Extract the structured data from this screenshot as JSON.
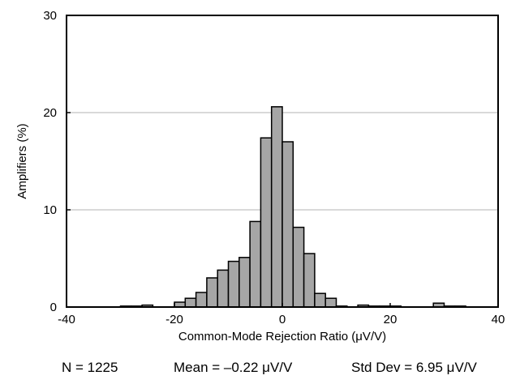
{
  "chart_data": {
    "type": "bar",
    "title": "",
    "xlabel": "Common-Mode Rejection Ratio (μV/V)",
    "ylabel": "Amplifiers (%)",
    "xlim": [
      -40,
      40
    ],
    "ylim": [
      0,
      30
    ],
    "x_ticks": [
      "-40",
      "-20",
      "0",
      "20",
      "40"
    ],
    "y_ticks": [
      "0",
      "10",
      "20",
      "30"
    ],
    "grid": "horizontal",
    "bin_width": 2,
    "bars": [
      {
        "x": -30,
        "value": 0.1
      },
      {
        "x": -28,
        "value": 0.1
      },
      {
        "x": -26,
        "value": 0.2
      },
      {
        "x": -20,
        "value": 0.5
      },
      {
        "x": -18,
        "value": 0.9
      },
      {
        "x": -16,
        "value": 1.5
      },
      {
        "x": -14,
        "value": 3.0
      },
      {
        "x": -12,
        "value": 3.8
      },
      {
        "x": -10,
        "value": 4.7
      },
      {
        "x": -8,
        "value": 5.1
      },
      {
        "x": -6,
        "value": 8.8
      },
      {
        "x": -4,
        "value": 17.4
      },
      {
        "x": -2,
        "value": 20.6
      },
      {
        "x": 0,
        "value": 17.0
      },
      {
        "x": 2,
        "value": 8.2
      },
      {
        "x": 4,
        "value": 5.5
      },
      {
        "x": 6,
        "value": 1.4
      },
      {
        "x": 8,
        "value": 0.9
      },
      {
        "x": 10,
        "value": 0.1
      },
      {
        "x": 14,
        "value": 0.2
      },
      {
        "x": 16,
        "value": 0.1
      },
      {
        "x": 18,
        "value": 0.1
      },
      {
        "x": 20,
        "value": 0.1
      },
      {
        "x": 28,
        "value": 0.4
      },
      {
        "x": 30,
        "value": 0.1
      },
      {
        "x": 32,
        "value": 0.1
      }
    ],
    "colors": {
      "bar_fill": "#a6a6a6",
      "bar_stroke": "#000000",
      "grid": "#b3b3b3"
    }
  },
  "stats": {
    "n": "N = 1225",
    "mean": "Mean = –0.22 μV/V",
    "std": "Std Dev = 6.95 μV/V"
  }
}
